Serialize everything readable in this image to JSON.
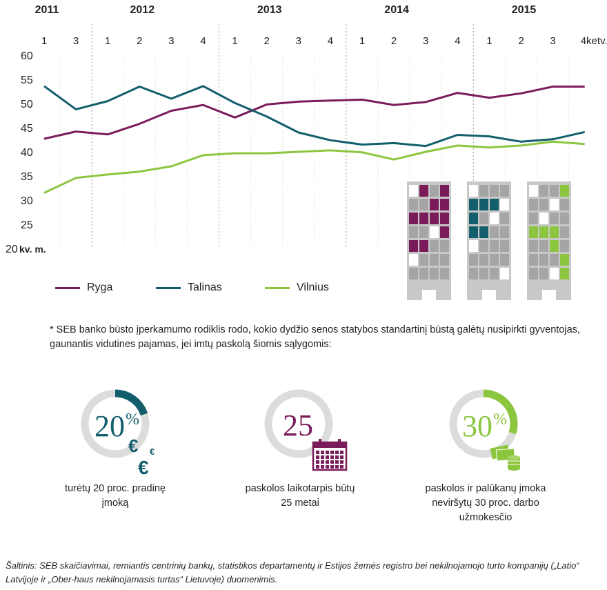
{
  "chart_data": {
    "type": "line",
    "xlabel": "kv. m.",
    "ylim": [
      20,
      60
    ],
    "yticks": [
      20,
      25,
      30,
      35,
      40,
      45,
      50,
      55,
      60
    ],
    "years": [
      {
        "label": "2011",
        "index": 0
      },
      {
        "label": "2012",
        "index": 3
      },
      {
        "label": "2013",
        "index": 7
      },
      {
        "label": "2014",
        "index": 11
      },
      {
        "label": "2015",
        "index": 15
      }
    ],
    "quarters": [
      "1",
      "3",
      "1",
      "2",
      "3",
      "4",
      "1",
      "2",
      "3",
      "4",
      "1",
      "2",
      "3",
      "4",
      "1",
      "2",
      "3",
      "4"
    ],
    "quarter_suffix": "ketv.",
    "year_separators_after": [
      1,
      5,
      9,
      13
    ],
    "series": [
      {
        "name": "Ryga",
        "color": "#7b1c5a",
        "values": [
          42.7,
          44.2,
          43.6,
          45.8,
          48.5,
          49.7,
          47.1,
          49.8,
          50.4,
          50.6,
          50.8,
          49.7,
          50.3,
          52.2,
          51.2,
          52.1,
          53.5,
          53.5
        ]
      },
      {
        "name": "Talinas",
        "color": "#135e6c",
        "values": [
          53.6,
          48.8,
          50.5,
          53.5,
          51.0,
          53.6,
          50.1,
          47.3,
          44.0,
          42.4,
          41.5,
          41.8,
          41.2,
          43.5,
          43.2,
          42.1,
          42.6,
          44.1
        ]
      },
      {
        "name": "Vilnius",
        "color": "#8cc63f",
        "values": [
          31.5,
          34.6,
          35.3,
          35.9,
          37.0,
          39.3,
          39.7,
          39.7,
          40.0,
          40.3,
          39.9,
          38.4,
          40.0,
          41.3,
          40.9,
          41.3,
          42.1,
          41.6
        ]
      }
    ]
  },
  "footnote": "* SEB banko būsto įperkamumo rodiklis  rodo, kokio dydžio senos statybos standartinį būstą galėtų nusipirkti gyventojas, gaunantis vidutines pajamas, jei imtų paskolą šiomis sąlygomis:",
  "conditions": [
    {
      "big": "20",
      "sup": "%",
      "euro": "€",
      "fraction": 0.2,
      "color": "#135e6c",
      "caption_line1": "turėtų 20 proc. pradinę",
      "caption_line2": "įmoką",
      "caption_line3": ""
    },
    {
      "big": "25",
      "sup": "",
      "fraction": 0,
      "color": "#7b1c5a",
      "caption_line1": "paskolos laikotarpis būtų",
      "caption_line2": "25 metai",
      "caption_line3": ""
    },
    {
      "big": "30",
      "sup": "%",
      "fraction": 0.3,
      "color": "#8cc63f",
      "caption_line1": "paskolos ir palūkanų įmoka",
      "caption_line2": "neviršytų 30 proc. darbo",
      "caption_line3": "užmokesčio"
    }
  ],
  "source": "Šaltinis: SEB skaičiavimai, remiantis centrinių bankų, statistikos departamentų ir Estijos žemės registro bei nekilnojamojo turto kompanijų („Latio“ Latvijoje ir „Ober-haus nekilnojamasis turtas“ Lietuvoje) duomenimis.",
  "colors": {
    "grid": "#dadada",
    "ring": "#dcdcdc",
    "building": "#c8c8c8"
  }
}
